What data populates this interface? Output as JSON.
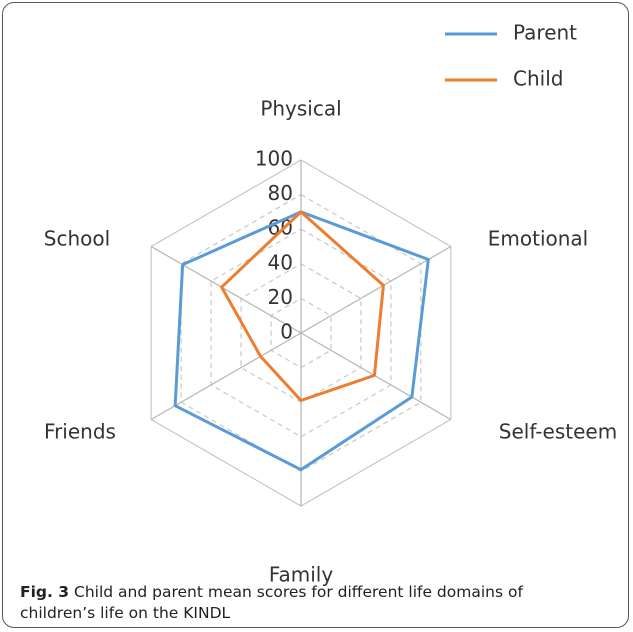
{
  "chart_data": {
    "type": "radar",
    "categories": [
      "Physical",
      "Emotional",
      "Self-esteem",
      "Family",
      "Friends",
      "School"
    ],
    "series": [
      {
        "name": "Parent",
        "color": "#5b9bd5",
        "values": [
          70,
          85,
          74,
          79,
          84,
          79
        ]
      },
      {
        "name": "Child",
        "color": "#ed7d31",
        "values": [
          70,
          55,
          49,
          39,
          27,
          53
        ]
      }
    ],
    "ylim": [
      0,
      100
    ],
    "yticks": [
      0,
      20,
      40,
      60,
      80,
      100
    ],
    "grid": true,
    "legend": "top-right"
  },
  "caption": {
    "label": "Fig. 3",
    "text": "Child and parent mean scores for different life domains of children’s life on the KINDL"
  }
}
